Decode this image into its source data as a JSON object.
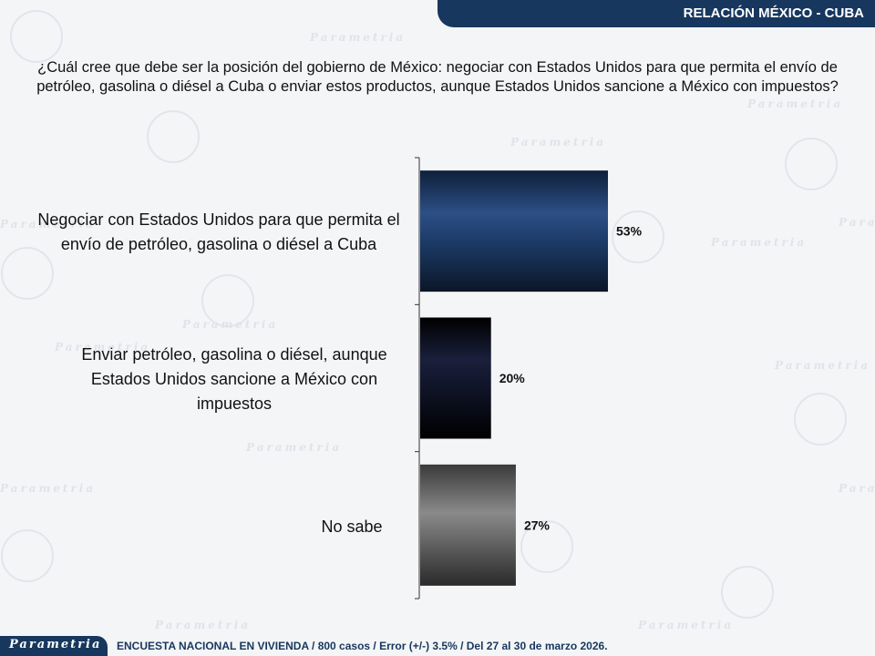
{
  "header": {
    "title": "RELACIÓN MÉXICO - CUBA"
  },
  "question": "¿Cuál cree que debe ser la posición del gobierno de México: negociar con Estados Unidos para que permita el envío de petróleo, gasolina o diésel a Cuba o enviar estos productos, aunque Estados Unidos sancione a México con impuestos?",
  "chart_data": {
    "type": "bar",
    "orientation": "horizontal",
    "categories": [
      "Negociar con Estados Unidos para que permita el envío de petróleo, gasolina o diésel a Cuba",
      "Enviar petróleo, gasolina o diésel, aunque Estados Unidos sancione a México con impuestos",
      "No sabe"
    ],
    "values": [
      53,
      20,
      27
    ],
    "value_labels": [
      "53%",
      "20%",
      "27%"
    ],
    "bar_colors": [
      "#1f3f6e",
      "#0d1124",
      "#6a6a6a"
    ],
    "grid": false,
    "legend": "none"
  },
  "footer": {
    "logo_text": "Parametria",
    "note": "ENCUESTA NACIONAL EN VIVIENDA / 800 casos / Error (+/-) 3.5% / Del 27 al 30 de marzo 2026."
  },
  "watermark": {
    "text": "Parametria"
  }
}
